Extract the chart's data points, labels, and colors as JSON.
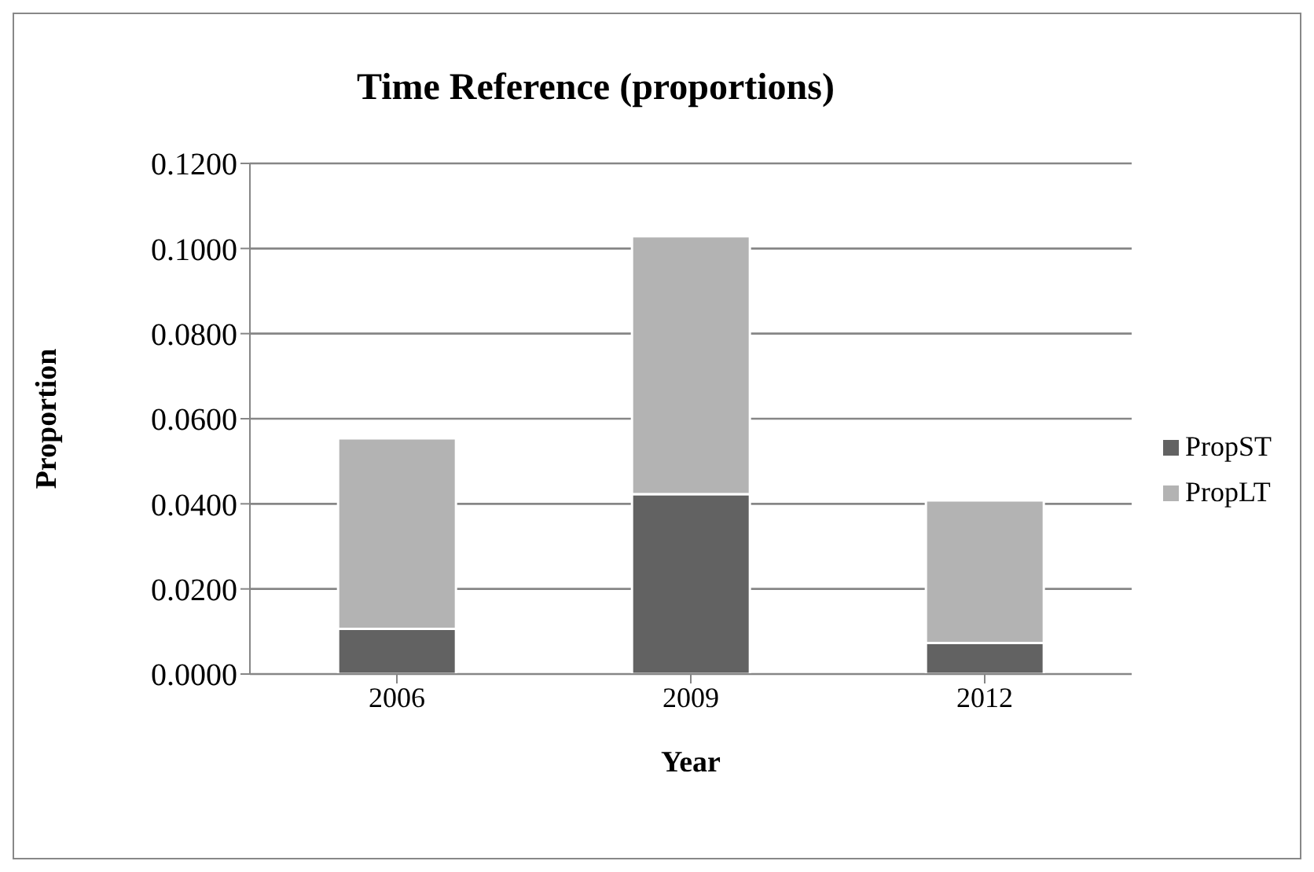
{
  "chart_data": {
    "type": "bar",
    "title": "Time Reference (proportions)",
    "xlabel": "Year",
    "ylabel": "Proportion",
    "categories": [
      "2006",
      "2009",
      "2012"
    ],
    "series": [
      {
        "name": "PropST",
        "color": "#626262",
        "values": [
          0.0106,
          0.0423,
          0.0073
        ]
      },
      {
        "name": "PropLT",
        "color": "#b3b3b3",
        "values": [
          0.0448,
          0.0606,
          0.0335
        ]
      }
    ],
    "stacked": true,
    "ylim": [
      0,
      0.12
    ],
    "yticks": [
      {
        "value": 0,
        "label": "0.0000"
      },
      {
        "value": 0.02,
        "label": "0.0200"
      },
      {
        "value": 0.04,
        "label": "0.0400"
      },
      {
        "value": 0.06,
        "label": "0.0600"
      },
      {
        "value": 0.08,
        "label": "0.0800"
      },
      {
        "value": 0.1,
        "label": "0.1000"
      },
      {
        "value": 0.12,
        "label": "0.1200"
      }
    ],
    "grid": "y",
    "legend": "right"
  }
}
